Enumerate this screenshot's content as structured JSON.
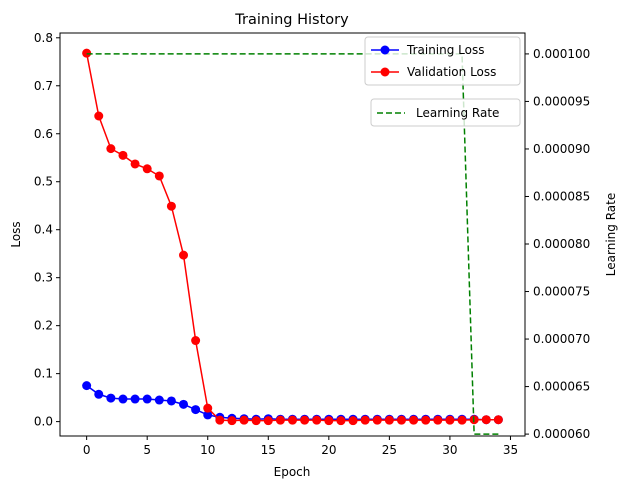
{
  "chart_data": {
    "type": "line",
    "title": "Training History",
    "xlabel": "Epoch",
    "ylabel": "Loss",
    "y2label": "Learning Rate",
    "xlim": [
      -2.2,
      36.2
    ],
    "ylim": [
      -0.03,
      0.81
    ],
    "y2lim": [
      5.98e-05,
      0.0001022
    ],
    "xticks": [
      0,
      5,
      10,
      15,
      20,
      25,
      30,
      35
    ],
    "yticks": [
      0.0,
      0.1,
      0.2,
      0.3,
      0.4,
      0.5,
      0.6,
      0.7,
      0.8
    ],
    "y2ticks": [
      6e-05,
      6.5e-05,
      7e-05,
      7.5e-05,
      8e-05,
      8.5e-05,
      9e-05,
      9.5e-05,
      0.0001
    ],
    "xtick_labels": [
      "0",
      "5",
      "10",
      "15",
      "20",
      "25",
      "30",
      "35"
    ],
    "ytick_labels": [
      "0.0",
      "0.1",
      "0.2",
      "0.3",
      "0.4",
      "0.5",
      "0.6",
      "0.7",
      "0.8"
    ],
    "y2tick_labels": [
      "0.000060",
      "0.000065",
      "0.000070",
      "0.000075",
      "0.000080",
      "0.000085",
      "0.000090",
      "0.000095",
      "0.000100"
    ],
    "x": [
      0,
      1,
      2,
      3,
      4,
      5,
      6,
      7,
      8,
      9,
      10,
      11,
      12,
      13,
      14,
      15,
      16,
      17,
      18,
      19,
      20,
      21,
      22,
      23,
      24,
      25,
      26,
      27,
      28,
      29,
      30,
      31,
      32,
      33,
      34
    ],
    "series": [
      {
        "name": "Training Loss",
        "axis": "left",
        "color": "#0000ff",
        "style": "solid",
        "marker": "circle",
        "values": [
          0.075,
          0.057,
          0.049,
          0.047,
          0.047,
          0.047,
          0.045,
          0.043,
          0.036,
          0.025,
          0.014,
          0.009,
          0.007,
          0.006,
          0.005,
          0.006,
          0.005,
          0.005,
          0.005,
          0.005,
          0.005,
          0.005,
          0.005,
          0.005,
          0.005,
          0.005,
          0.005,
          0.005,
          0.005,
          0.005,
          0.005,
          0.005,
          0.005,
          0.004,
          0.004
        ]
      },
      {
        "name": "Validation Loss",
        "axis": "left",
        "color": "#ff0000",
        "style": "solid",
        "marker": "circle",
        "values": [
          0.768,
          0.637,
          0.569,
          0.555,
          0.537,
          0.527,
          0.512,
          0.449,
          0.347,
          0.169,
          0.028,
          0.003,
          0.002,
          0.003,
          0.002,
          0.002,
          0.003,
          0.003,
          0.003,
          0.003,
          0.002,
          0.002,
          0.002,
          0.003,
          0.003,
          0.003,
          0.003,
          0.003,
          0.003,
          0.003,
          0.003,
          0.003,
          0.004,
          0.004,
          0.004
        ]
      },
      {
        "name": "Learning Rate",
        "axis": "right",
        "color": "#008000",
        "style": "dashed",
        "marker": "none",
        "values": [
          0.0001,
          0.0001,
          0.0001,
          0.0001,
          0.0001,
          0.0001,
          0.0001,
          0.0001,
          0.0001,
          0.0001,
          0.0001,
          0.0001,
          0.0001,
          0.0001,
          0.0001,
          0.0001,
          0.0001,
          0.0001,
          0.0001,
          0.0001,
          0.0001,
          0.0001,
          0.0001,
          0.0001,
          0.0001,
          0.0001,
          0.0001,
          0.0001,
          0.0001,
          0.0001,
          0.0001,
          0.0001,
          6e-05,
          6e-05,
          6e-05
        ]
      }
    ],
    "legend_left": {
      "placement": "top-right",
      "entries": [
        "Training Loss",
        "Validation Loss"
      ]
    },
    "legend_right": {
      "placement": "upper-right",
      "entries": [
        "Learning Rate"
      ]
    },
    "grid": false
  }
}
